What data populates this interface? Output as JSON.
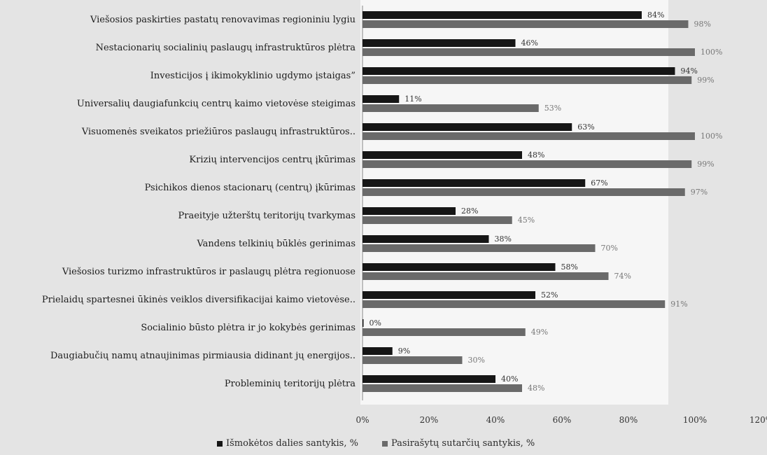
{
  "chart_data": {
    "type": "bar",
    "orientation": "horizontal",
    "title": "",
    "xlabel": "",
    "ylabel": "",
    "categories": [
      "Viešosios paskirties pastatų renovavimas regioniniu lygiu",
      "Nestacionarių socialinių paslaugų infrastruktūros plėtra",
      "Investicijos į ikimokyklinio ugdymo įstaigas”",
      "Universalių daugiafunkcių centrų kaimo vietovėse steigimas",
      "Visuomenės sveikatos priežiūros paslaugų infrastruktūros..",
      "Krizių intervencijos centrų įkūrimas",
      "Psichikos dienos stacionarų (centrų) įkūrimas",
      "Praeityje užterštų teritorijų tvarkymas",
      "Vandens telkinių būklės gerinimas",
      "Viešosios turizmo infrastruktūros ir paslaugų plėtra regionuose",
      "Prielaidų spartesnei ūkinės veiklos diversifikacijai kaimo vietovėse..",
      "Socialinio būsto plėtra ir jo kokybės gerinimas",
      "Daugiabučių namų atnaujinimas pirmiausia didinant jų energijos..",
      "Probleminių teritorijų plėtra"
    ],
    "series": [
      {
        "name": "Išmokėtos dalies santykis, %",
        "color": "#161616",
        "values": [
          84,
          46,
          94,
          11,
          63,
          48,
          67,
          28,
          38,
          58,
          52,
          0,
          9,
          40
        ],
        "labels": [
          "84%",
          "46%",
          "94%",
          "11%",
          "63%",
          "48%",
          "67%",
          "28%",
          "38%",
          "58%",
          "52%",
          "0%",
          "9%",
          "40%"
        ]
      },
      {
        "name": "Pasirašytų sutarčių santykis, %",
        "color": "#6a6a6a",
        "values": [
          98,
          100,
          99,
          53,
          100,
          99,
          97,
          45,
          70,
          74,
          91,
          49,
          30,
          48
        ],
        "labels": [
          "98%",
          "100%",
          "99%",
          "53%",
          "100%",
          "99%",
          "97%",
          "45%",
          "70%",
          "74%",
          "91%",
          "49%",
          "30%",
          "48%"
        ]
      }
    ],
    "xlim": [
      0,
      120
    ],
    "xticks": [
      "0%",
      "20%",
      "40%",
      "60%",
      "80%",
      "100%",
      "120%"
    ],
    "grid": false,
    "legend": "bottom"
  }
}
